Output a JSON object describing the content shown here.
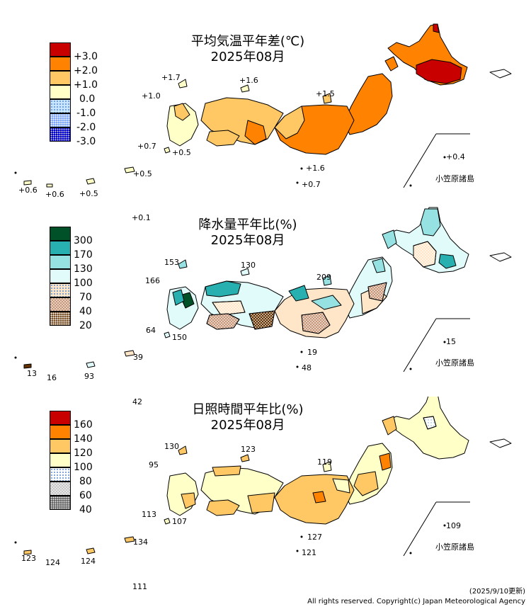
{
  "maps": [
    {
      "title_line1": "平均気温平年差(℃)",
      "title_line2": "2025年08月",
      "legend": [
        {
          "label": "+3.0",
          "color": "#c80000",
          "pattern": "solid"
        },
        {
          "label": "+2.0",
          "color": "#ff8200",
          "pattern": "solid"
        },
        {
          "label": "+1.0",
          "color": "#ffc864",
          "pattern": "solid"
        },
        {
          "label": "0.0",
          "color": "#ffffc8",
          "pattern": "solid"
        },
        {
          "label": "-1.0",
          "color": "#c8e6ff",
          "pattern": "dots-light"
        },
        {
          "label": "-2.0",
          "color": "#6496ff",
          "pattern": "dots"
        },
        {
          "label": "-3.0",
          "color": "#0000c8",
          "pattern": "dots-dense"
        }
      ],
      "values": [
        "+1.7",
        "+1.6",
        "+1.0",
        "+1.5",
        "+0.7",
        "+0.5",
        "+0.4",
        "+1.6",
        "+0.7",
        "+0.5",
        "+0.6",
        "+0.6",
        "+0.5",
        "+0.1"
      ],
      "ogasawara": "小笠原諸島"
    },
    {
      "title_line1": "降水量平年比(%)",
      "title_line2": "2025年08月",
      "legend": [
        {
          "label": "300",
          "color": "#005028",
          "pattern": "solid"
        },
        {
          "label": "170",
          "color": "#28afaf",
          "pattern": "solid"
        },
        {
          "label": "130",
          "color": "#96e1e1",
          "pattern": "solid"
        },
        {
          "label": "100",
          "color": "#e1fafa",
          "pattern": "solid"
        },
        {
          "label": "70",
          "color": "#ffe6c8",
          "pattern": "dots-light"
        },
        {
          "label": "40",
          "color": "#c89678",
          "pattern": "check"
        },
        {
          "label": "20",
          "color": "#643200",
          "pattern": "dots"
        }
      ],
      "values": [
        "153",
        "130",
        "166",
        "209",
        "64",
        "150",
        "15",
        "19",
        "48",
        "39",
        "13",
        "16",
        "93",
        "42"
      ],
      "ogasawara": "小笠原諸島"
    },
    {
      "title_line1": "日照時間平年比(%)",
      "title_line2": "2025年08月",
      "legend": [
        {
          "label": "160",
          "color": "#c80000",
          "pattern": "solid"
        },
        {
          "label": "140",
          "color": "#ff8200",
          "pattern": "solid"
        },
        {
          "label": "120",
          "color": "#ffc864",
          "pattern": "solid"
        },
        {
          "label": "100",
          "color": "#ffffc8",
          "pattern": "solid"
        },
        {
          "label": "80",
          "color": "#ffffff",
          "pattern": "dots-light"
        },
        {
          "label": "60",
          "color": "#c8c8c8",
          "pattern": "check"
        },
        {
          "label": "40",
          "color": "#646464",
          "pattern": "dots-dense"
        }
      ],
      "values": [
        "130",
        "123",
        "95",
        "119",
        "113",
        "107",
        "109",
        "127",
        "121",
        "134",
        "123",
        "124",
        "124",
        "111"
      ],
      "ogasawara": "小笠原諸島"
    }
  ],
  "footer": {
    "updated": "(2025/9/10更新)",
    "copyright": "All rights reserved. Copyright(c) Japan Meteorological Agency"
  }
}
